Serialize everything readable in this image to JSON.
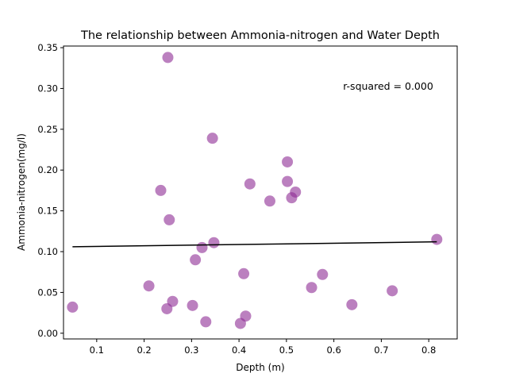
{
  "chart_data": {
    "type": "scatter",
    "title": "The relationship between Ammonia-nitrogen and Water Depth",
    "xlabel": "Depth (m)",
    "ylabel": "Ammonia-nitrogen(mg/l)",
    "annotation": "r-squared = 0.000",
    "xlim": [
      0.03,
      0.86
    ],
    "ylim": [
      -0.007,
      0.352
    ],
    "x_ticks": [
      0.1,
      0.2,
      0.3,
      0.4,
      0.5,
      0.6,
      0.7,
      0.8
    ],
    "x_tick_labels": [
      "0.1",
      "0.2",
      "0.3",
      "0.4",
      "0.5",
      "0.6",
      "0.7",
      "0.8"
    ],
    "y_ticks": [
      0.0,
      0.05,
      0.1,
      0.15,
      0.2,
      0.25,
      0.3,
      0.35
    ],
    "y_tick_labels": [
      "0.00",
      "0.05",
      "0.10",
      "0.15",
      "0.20",
      "0.25",
      "0.30",
      "0.35"
    ],
    "grid": false,
    "legend": "none",
    "colors": {
      "points": "#8e2b94",
      "line": "#000000"
    },
    "points": [
      {
        "x": 0.049,
        "y": 0.032
      },
      {
        "x": 0.21,
        "y": 0.058
      },
      {
        "x": 0.235,
        "y": 0.175
      },
      {
        "x": 0.25,
        "y": 0.338
      },
      {
        "x": 0.248,
        "y": 0.03
      },
      {
        "x": 0.253,
        "y": 0.139
      },
      {
        "x": 0.26,
        "y": 0.039
      },
      {
        "x": 0.302,
        "y": 0.034
      },
      {
        "x": 0.308,
        "y": 0.09
      },
      {
        "x": 0.322,
        "y": 0.105
      },
      {
        "x": 0.33,
        "y": 0.014
      },
      {
        "x": 0.344,
        "y": 0.239
      },
      {
        "x": 0.347,
        "y": 0.111
      },
      {
        "x": 0.403,
        "y": 0.012
      },
      {
        "x": 0.41,
        "y": 0.073
      },
      {
        "x": 0.414,
        "y": 0.021
      },
      {
        "x": 0.423,
        "y": 0.183
      },
      {
        "x": 0.465,
        "y": 0.162
      },
      {
        "x": 0.502,
        "y": 0.21
      },
      {
        "x": 0.502,
        "y": 0.186
      },
      {
        "x": 0.511,
        "y": 0.166
      },
      {
        "x": 0.519,
        "y": 0.173
      },
      {
        "x": 0.553,
        "y": 0.056
      },
      {
        "x": 0.576,
        "y": 0.072
      },
      {
        "x": 0.638,
        "y": 0.035
      },
      {
        "x": 0.723,
        "y": 0.052
      },
      {
        "x": 0.817,
        "y": 0.115
      }
    ],
    "trendline": [
      {
        "x": 0.049,
        "y": 0.106
      },
      {
        "x": 0.817,
        "y": 0.112
      }
    ]
  }
}
